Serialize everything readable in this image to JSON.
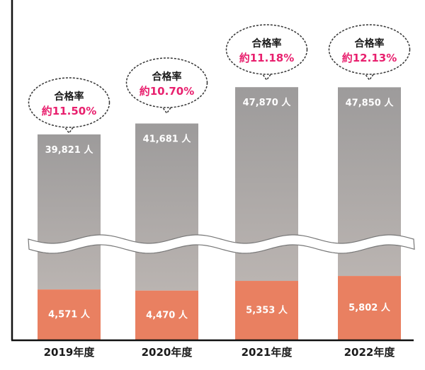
{
  "chart_data": {
    "type": "bar",
    "stacked": true,
    "broken_axis": true,
    "categories": [
      "2019年度",
      "2020年度",
      "2021年度",
      "2022年度"
    ],
    "series": [
      {
        "values": [
          4571,
          4470,
          5353,
          5802
        ],
        "labels": [
          "4,571 人",
          "4,470 人",
          "5,353 人",
          "5,802 人"
        ],
        "color": "#e98061"
      },
      {
        "totals": [
          39821,
          41681,
          47870,
          47850
        ],
        "labels": [
          "39,821 人",
          "41,681 人",
          "47,870 人",
          "47,850 人"
        ],
        "color": "#a9a5a3"
      }
    ],
    "annotations": {
      "title": "合格率",
      "rates": [
        "約11.50%",
        "約10.70%",
        "約11.18%",
        "約12.13%"
      ],
      "rate_color": "#e8206e"
    },
    "grid": false,
    "legend": "none"
  }
}
